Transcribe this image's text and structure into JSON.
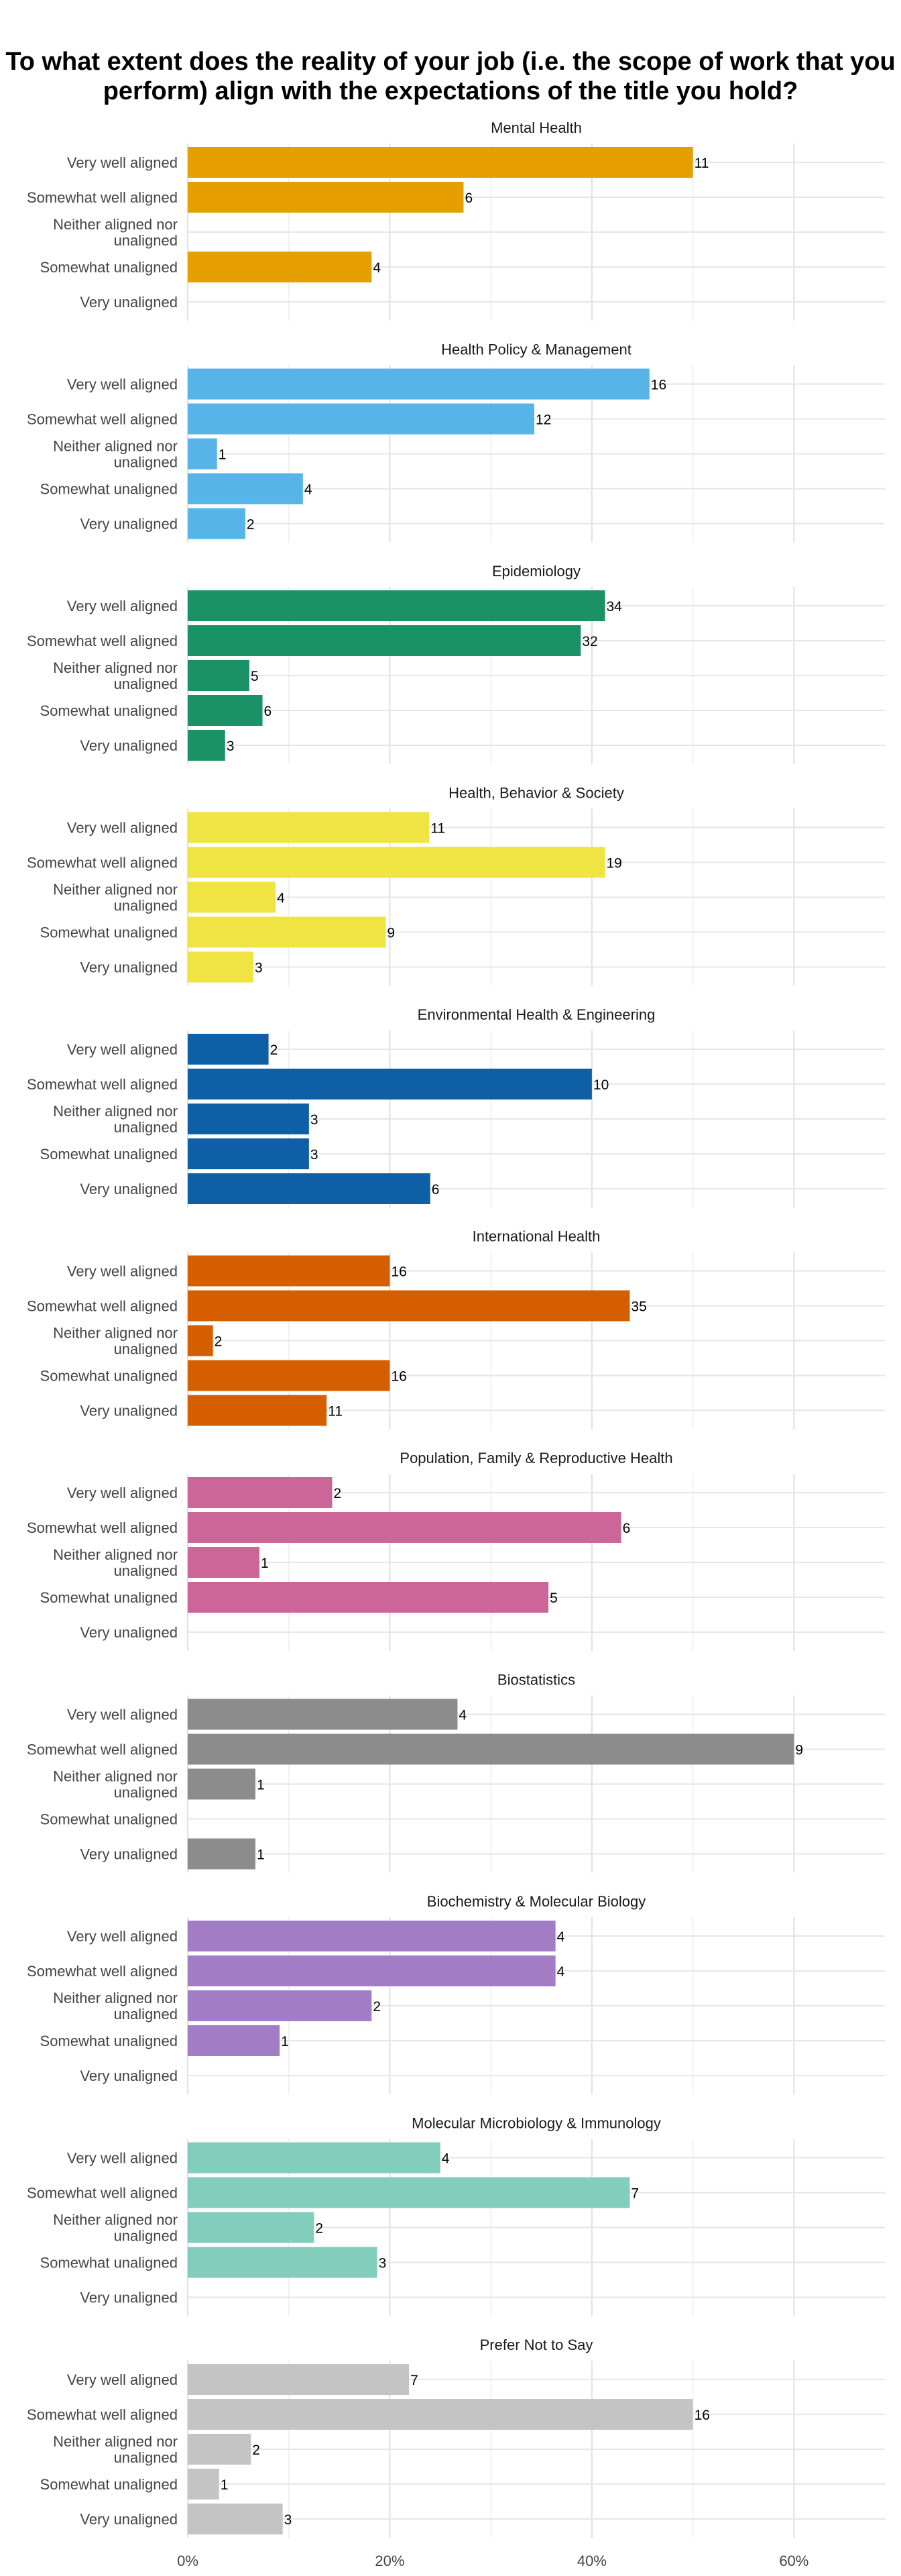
{
  "chart_data": {
    "type": "bar",
    "orientation": "horizontal",
    "title": "To what extent does the reality of your job (i.e. the scope of work that you perform) align with the expectations of the title you hold?",
    "xlabel": "",
    "ylabel": "",
    "xlim": [
      0,
      0.69
    ],
    "x_ticks": [
      0,
      0.2,
      0.4,
      0.6
    ],
    "x_tick_labels": [
      "0%",
      "20%",
      "40%",
      "60%"
    ],
    "grid": true,
    "legend": "none",
    "categories": [
      "Very well aligned",
      "Somewhat well aligned",
      "Neither aligned nor unaligned",
      "Somewhat unaligned",
      "Very unaligned"
    ],
    "category_lines": [
      [
        "Very well aligned"
      ],
      [
        "Somewhat well aligned"
      ],
      [
        "Neither aligned nor",
        "unaligned"
      ],
      [
        "Somewhat unaligned"
      ],
      [
        "Very unaligned"
      ]
    ],
    "facets": [
      {
        "name": "Mental Health",
        "color": "#E69F00",
        "counts": [
          11,
          6,
          null,
          4,
          null
        ],
        "shares": [
          0.5,
          0.273,
          0,
          0.182,
          0
        ]
      },
      {
        "name": "Health Policy & Management",
        "color": "#56B4E9",
        "counts": [
          16,
          12,
          1,
          4,
          2
        ],
        "shares": [
          0.457,
          0.343,
          0.029,
          0.114,
          0.057
        ]
      },
      {
        "name": "Epidemiology",
        "color": "#1B9265",
        "counts": [
          34,
          32,
          5,
          6,
          3
        ],
        "shares": [
          0.413,
          0.389,
          0.061,
          0.074,
          0.037
        ]
      },
      {
        "name": "Health, Behavior & Society",
        "color": "#F0E442",
        "counts": [
          11,
          19,
          4,
          9,
          3
        ],
        "shares": [
          0.239,
          0.413,
          0.087,
          0.196,
          0.065
        ]
      },
      {
        "name": "Environmental Health & Engineering",
        "color": "#0F5FA6",
        "counts": [
          2,
          10,
          3,
          3,
          6
        ],
        "shares": [
          0.08,
          0.4,
          0.12,
          0.12,
          0.24
        ]
      },
      {
        "name": "International Health",
        "color": "#D55E00",
        "counts": [
          16,
          35,
          2,
          16,
          11
        ],
        "shares": [
          0.2,
          0.4375,
          0.025,
          0.2,
          0.1375
        ]
      },
      {
        "name": "Population, Family & Reproductive Health",
        "color": "#CC6699",
        "counts": [
          2,
          6,
          1,
          5,
          null
        ],
        "shares": [
          0.143,
          0.429,
          0.071,
          0.357,
          0
        ]
      },
      {
        "name": "Biostatistics",
        "color": "#8C8C8C",
        "counts": [
          4,
          9,
          1,
          null,
          1
        ],
        "shares": [
          0.267,
          0.6,
          0.067,
          0,
          0.067
        ]
      },
      {
        "name": "Biochemistry & Molecular Biology",
        "color": "#A27DC6",
        "counts": [
          4,
          4,
          2,
          1,
          null
        ],
        "shares": [
          0.364,
          0.364,
          0.182,
          0.091,
          0
        ]
      },
      {
        "name": "Molecular Microbiology & Immunology",
        "color": "#82CDBC",
        "counts": [
          4,
          7,
          2,
          3,
          null
        ],
        "shares": [
          0.25,
          0.4375,
          0.125,
          0.1875,
          0
        ]
      },
      {
        "name": "Prefer Not to Say",
        "color": "#C4C4C4",
        "counts": [
          7,
          16,
          2,
          1,
          3
        ],
        "shares": [
          0.219,
          0.5,
          0.0625,
          0.031,
          0.094
        ]
      }
    ]
  }
}
